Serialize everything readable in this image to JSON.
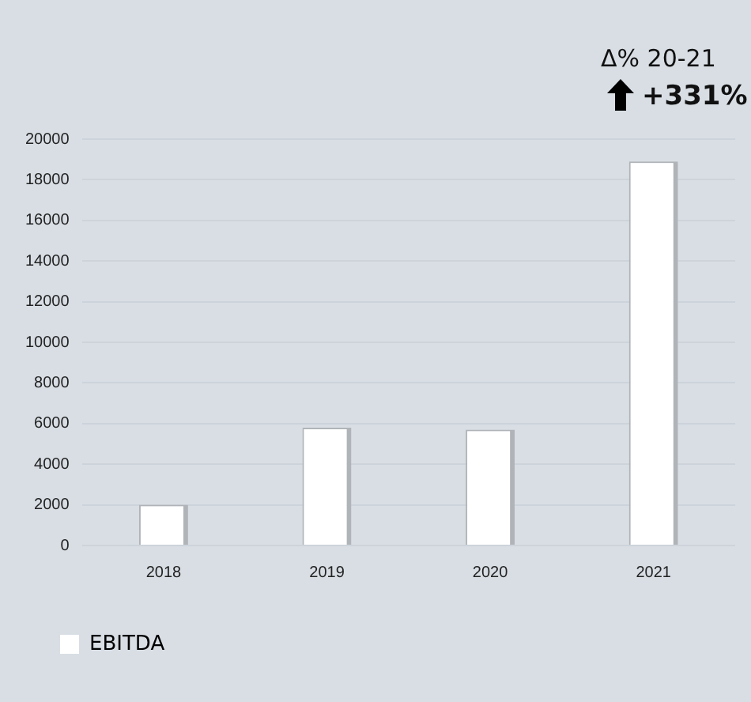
{
  "chart_data": {
    "type": "bar",
    "categories": [
      "2018",
      "2019",
      "2020",
      "2021"
    ],
    "series": [
      {
        "name": "EBITDA",
        "color": "#ffffff",
        "values": [
          2000,
          5800,
          5700,
          18900
        ]
      }
    ],
    "ylim": [
      0,
      20000
    ],
    "yticks": [
      0,
      2000,
      4000,
      6000,
      8000,
      10000,
      12000,
      14000,
      16000,
      18000,
      20000
    ],
    "grid": "y",
    "legend": "bottom left",
    "annotations": [
      "Δ% 20-21",
      "+331%"
    ]
  }
}
